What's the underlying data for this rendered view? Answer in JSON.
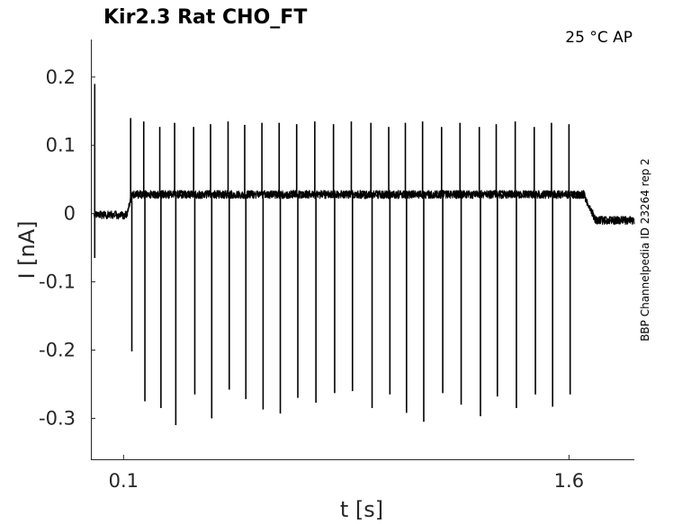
{
  "chart_data": {
    "type": "line",
    "title": "Kir2.3  Rat  CHO_FT",
    "condition": "25 °C  AP",
    "xlabel": "t [s]",
    "ylabel": "I [nA]",
    "side_label": "BBP Channelpedia ID 23264 rep 2",
    "xlim": [
      -0.01,
      1.82
    ],
    "ylim": [
      -0.36,
      0.255
    ],
    "x_ticks": [
      0.1,
      1.6
    ],
    "x_tick_labels": [
      "0.1",
      "1.6"
    ],
    "y_ticks": [
      0.2,
      0.1,
      0,
      -0.1,
      -0.2,
      -0.3
    ],
    "y_tick_labels": [
      "0.2",
      "0.1",
      "0",
      "-0.1",
      "-0.2",
      "-0.3"
    ],
    "series": [
      {
        "color": "#000000",
        "baseline": -0.002,
        "plateau": 0.028,
        "plateau_start": 0.12,
        "plateau_end": 1.65,
        "noise_band": 0.012,
        "spike_times": [
          0.124,
          0.168,
          0.222,
          0.272,
          0.336,
          0.393,
          0.452,
          0.508,
          0.566,
          0.624,
          0.683,
          0.744,
          0.807,
          0.867,
          0.933,
          0.993,
          1.049,
          1.107,
          1.171,
          1.233,
          1.298,
          1.355,
          1.419,
          1.483,
          1.541,
          1.6
        ],
        "spike_peaks": [
          0.14,
          0.135,
          0.127,
          0.133,
          0.127,
          0.131,
          0.135,
          0.13,
          0.133,
          0.133,
          0.131,
          0.135,
          0.131,
          0.135,
          0.133,
          0.127,
          0.133,
          0.135,
          0.127,
          0.133,
          0.127,
          0.131,
          0.135,
          0.127,
          0.133,
          0.131
        ],
        "spike_troughs": [
          -0.202,
          -0.275,
          -0.285,
          -0.31,
          -0.265,
          -0.3,
          -0.258,
          -0.272,
          -0.287,
          -0.293,
          -0.27,
          -0.277,
          -0.263,
          -0.26,
          -0.285,
          -0.265,
          -0.292,
          -0.305,
          -0.263,
          -0.28,
          -0.297,
          -0.268,
          -0.285,
          -0.265,
          -0.283,
          -0.265
        ],
        "onset_artifact": {
          "x": 0.0,
          "top": 0.19,
          "bottom": -0.065
        }
      }
    ]
  }
}
